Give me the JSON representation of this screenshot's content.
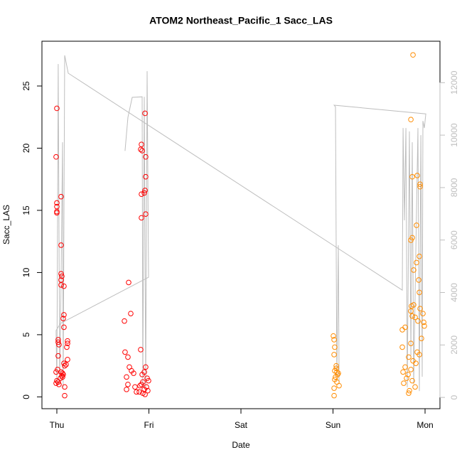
{
  "chart_data": {
    "type": "scatter",
    "title": "ATOM2 Northeast_Pacific_1 Sacc_LAS",
    "x_label": "Date",
    "y_label": "Sacc_LAS",
    "xlim": [
      -0.162,
      4.162
    ],
    "xticks": [
      {
        "value": 0,
        "label": "Thu"
      },
      {
        "value": 1,
        "label": "Fri"
      },
      {
        "value": 2,
        "label": "Sat"
      },
      {
        "value": 3,
        "label": "Sun"
      },
      {
        "value": 4,
        "label": "Mon"
      }
    ],
    "ylim": [
      -0.95,
      28.6
    ],
    "yticks": [
      0,
      5,
      10,
      15,
      20,
      25
    ],
    "y2lim": [
      -430,
      13580
    ],
    "y2ticks": [
      0,
      2000,
      4000,
      6000,
      8000,
      10000,
      12000
    ],
    "series": [
      {
        "mark": "line",
        "axis": "y2",
        "color": "#bebebe",
        "x": [
          0.741,
          0.772,
          0.819,
          0.927,
          0.934,
          0.95,
          0.965,
          0.981,
          0.996,
          0.039,
          -0.008,
          0.0,
          0.015,
          0.031,
          0.046,
          0.062,
          0.069,
          0.085,
          0.124,
          3.753,
          3.761,
          3.776,
          3.792,
          3.807,
          3.83,
          3.846,
          3.861,
          3.876,
          3.9,
          3.923,
          3.938,
          3.954,
          3.969,
          3.977,
          3.992,
          4.008,
          3.012,
          3.027,
          3.042,
          3.058,
          3.066
        ],
        "values": [
          9400,
          10680,
          11440,
          11460,
          380,
          11460,
          240,
          12440,
          4580,
          2820,
          2550,
          510,
          12710,
          510,
          4310,
          9730,
          380,
          13040,
          12360,
          4090,
          10270,
          6750,
          10270,
          380,
          10140,
          1600,
          9730,
          510,
          5660,
          10270,
          240,
          10000,
          790,
          10540,
          10270,
          10810,
          11140,
          11080,
          790,
          5800,
          510
        ]
      },
      {
        "mark": "point",
        "color": "#ff0000",
        "x": [
          0,
          -0.008,
          0,
          0,
          0,
          0,
          0.046,
          0.046,
          0.046,
          0.054,
          0.046,
          0.046,
          0.077,
          0.077,
          0.069,
          0.077,
          0.015,
          0.015,
          0.023,
          0.116,
          0.116,
          0.108,
          0.015,
          0.116,
          0.077,
          0.085,
          0.008,
          0.046,
          0.062,
          0.069,
          0.054,
          0.039,
          0,
          0.015,
          0.023,
          -0.008,
          0.085,
          0.085,
          -0.008,
          0.062,
          0.1,
          0.78,
          0.803,
          0.734,
          0.741,
          0.772,
          0.788,
          0.811,
          0.834,
          0.757,
          0.772,
          0.849,
          0.757,
          0.865,
          0.919,
          0.911,
          0.927,
          0.965,
          0.958,
          0.965,
          0.958,
          0.95,
          0.919,
          0.965,
          0.919,
          0.911,
          0.965,
          0.95,
          0.927,
          0.981,
          0.934,
          0.919,
          0.973,
          0.95,
          0.988,
          0.934,
          0.896,
          0.996,
          0.903,
          0.958
        ],
        "values": [
          23.2,
          19.3,
          15.6,
          15.3,
          14.9,
          14.8,
          16.1,
          12.2,
          9.9,
          9.7,
          9.4,
          9.0,
          8.9,
          6.6,
          6.3,
          5.6,
          4.6,
          4.4,
          4.2,
          4.5,
          4.3,
          4.0,
          3.3,
          3.0,
          2.7,
          2.5,
          2.2,
          2.0,
          1.9,
          1.8,
          1.7,
          1.5,
          1.3,
          1.2,
          1.0,
          1.1,
          0.8,
          0.1,
          2.0,
          1.6,
          2.6,
          9.2,
          6.7,
          6.1,
          3.6,
          3.2,
          2.4,
          2.1,
          1.9,
          1.6,
          1.0,
          0.8,
          0.6,
          0.4,
          20.3,
          19.9,
          19.8,
          19.3,
          22.8,
          17.7,
          16.6,
          16.4,
          16.3,
          14.7,
          14.4,
          3.8,
          2.4,
          2.0,
          1.8,
          1.5,
          1.2,
          1.0,
          0.8,
          0.6,
          0.5,
          0.3,
          0.4,
          1.3,
          0.9,
          0.2
        ]
      },
      {
        "mark": "point",
        "color": "#ff8c00",
        "x": [
          3.004,
          3.012,
          3.019,
          3.012,
          3.035,
          3.035,
          3.042,
          3.05,
          3.027,
          3.019,
          3.042,
          3.066,
          3.012,
          3.012,
          3.058,
          3.019,
          3.869,
          3.846,
          3.915,
          3.861,
          3.946,
          3.946,
          3.907,
          3.861,
          3.846,
          3.938,
          3.907,
          3.876,
          3.931,
          3.938,
          3.876,
          3.853,
          3.846,
          3.861,
          3.892,
          3.923,
          3.985,
          3.992,
          3.784,
          3.753,
          3.961,
          3.846,
          3.753,
          3.915,
          3.938,
          3.822,
          3.869,
          3.9,
          3.784,
          3.846,
          3.761,
          3.815,
          3.799,
          3.861,
          3.768,
          3.892,
          3.83,
          3.822,
          3.977,
          3.946
        ],
        "values": [
          4.9,
          4.6,
          4.0,
          3.4,
          2.5,
          2.3,
          2.0,
          1.8,
          1.6,
          1.4,
          1.2,
          0.9,
          0.7,
          0.1,
          1.9,
          2.1,
          27.5,
          22.3,
          17.8,
          17.7,
          17.1,
          16.9,
          13.8,
          12.8,
          12.6,
          11.3,
          10.8,
          10.2,
          9.4,
          8.4,
          7.4,
          7.3,
          6.9,
          6.5,
          6.4,
          6.1,
          6.0,
          5.7,
          5.6,
          5.4,
          4.7,
          4.3,
          4.0,
          3.6,
          3.4,
          3.2,
          2.9,
          2.7,
          2.4,
          2.2,
          2.0,
          1.8,
          1.5,
          1.3,
          1.1,
          0.8,
          0.5,
          0.3,
          6.7,
          7.1
        ]
      }
    ]
  }
}
